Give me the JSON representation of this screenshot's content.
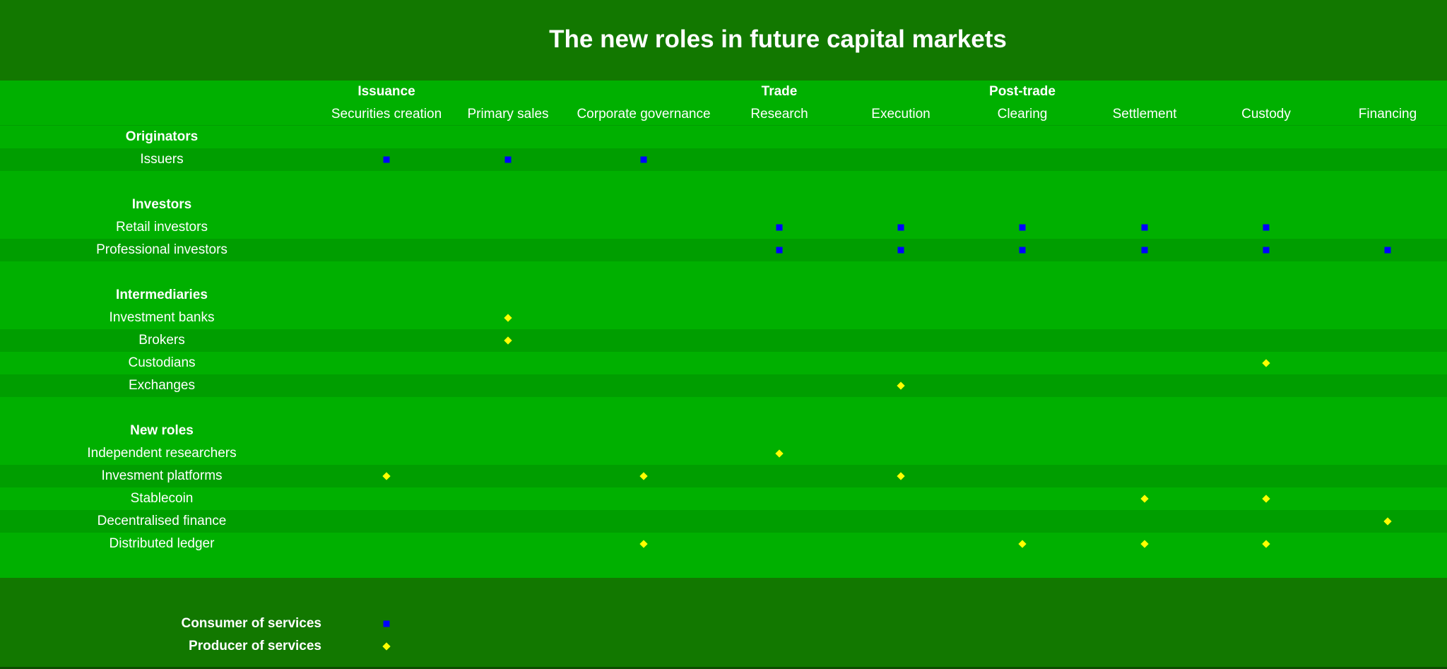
{
  "title": "The new roles in future capital markets",
  "colors": {
    "title_band": "#127800",
    "row_light": "#00b000",
    "row_dark": "#009e00",
    "consumer_marker": "#0000ff",
    "producer_marker": "#ffff00"
  },
  "groups": [
    {
      "label": "Issuance",
      "col": 0
    },
    {
      "label": "Trade",
      "col": 3
    },
    {
      "label": "Post-trade",
      "col": 5
    }
  ],
  "columns": [
    "Securities creation",
    "Primary sales",
    "Corporate governance",
    "Research",
    "Execution",
    "Clearing",
    "Settlement",
    "Custody",
    "Financing"
  ],
  "rows": [
    {
      "type": "section",
      "label": "Originators"
    },
    {
      "type": "item",
      "label": "Issuers",
      "consumer": [
        0,
        1,
        2
      ],
      "producer": []
    },
    {
      "type": "spacer"
    },
    {
      "type": "section",
      "label": "Investors"
    },
    {
      "type": "item",
      "label": "Retail investors",
      "consumer": [
        3,
        4,
        5,
        6,
        7
      ],
      "producer": []
    },
    {
      "type": "item",
      "label": "Professional investors",
      "consumer": [
        3,
        4,
        5,
        6,
        7,
        8
      ],
      "producer": []
    },
    {
      "type": "spacer"
    },
    {
      "type": "section",
      "label": "Intermediaries"
    },
    {
      "type": "item",
      "label": "Investment banks",
      "consumer": [],
      "producer": [
        1
      ]
    },
    {
      "type": "item",
      "label": "Brokers",
      "consumer": [],
      "producer": [
        1
      ]
    },
    {
      "type": "item",
      "label": "Custodians",
      "consumer": [],
      "producer": [
        7
      ]
    },
    {
      "type": "item",
      "label": "Exchanges",
      "consumer": [],
      "producer": [
        4
      ]
    },
    {
      "type": "spacer"
    },
    {
      "type": "section",
      "label": "New roles"
    },
    {
      "type": "item",
      "label": "Independent researchers",
      "consumer": [],
      "producer": [
        3
      ]
    },
    {
      "type": "item",
      "label": "Invesment platforms",
      "consumer": [],
      "producer": [
        0,
        2,
        4
      ]
    },
    {
      "type": "item",
      "label": "Stablecoin",
      "consumer": [],
      "producer": [
        6,
        7
      ]
    },
    {
      "type": "item",
      "label": "Decentralised finance",
      "consumer": [],
      "producer": [
        8
      ]
    },
    {
      "type": "item",
      "label": "Distributed ledger",
      "consumer": [],
      "producer": [
        2,
        5,
        6,
        7
      ]
    },
    {
      "type": "spacer"
    }
  ],
  "legend": {
    "consumer": "Consumer of services",
    "producer": "Producer of services"
  }
}
